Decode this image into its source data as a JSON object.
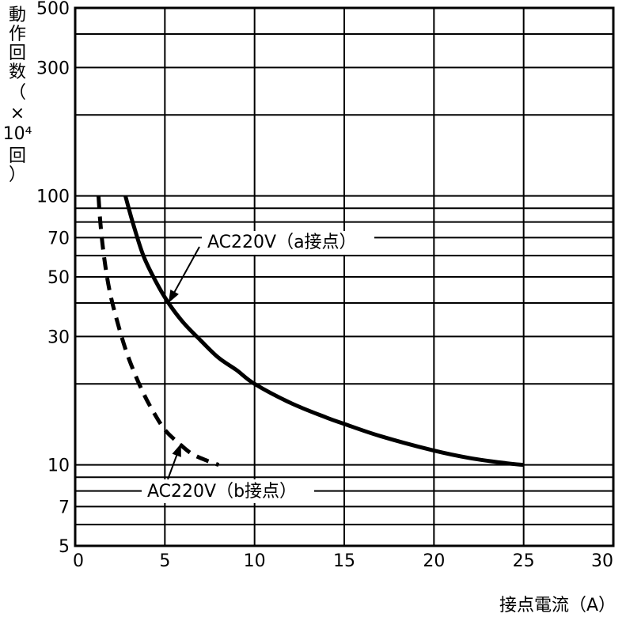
{
  "chart_data": {
    "type": "line",
    "title": "",
    "xlabel": "接点電流（A）",
    "ylabel": [
      "動",
      "作",
      "回",
      "数",
      "（",
      "×",
      "10⁴",
      "回",
      "）"
    ],
    "x_scale": "linear",
    "y_scale": "log",
    "xlim": [
      0,
      30
    ],
    "ylim": [
      5,
      500
    ],
    "x_ticks": [
      0,
      5,
      10,
      15,
      20,
      25,
      30
    ],
    "x_tick_labels": [
      "0",
      "5",
      "10",
      "15",
      "20",
      "25",
      "30"
    ],
    "y_ticks": [
      5,
      7,
      10,
      30,
      50,
      70,
      100,
      300,
      500
    ],
    "y_tick_labels": [
      "5",
      "7",
      "10",
      "30",
      "50",
      "70",
      "100",
      "300",
      "500"
    ],
    "y_gridlines": [
      6,
      7,
      8,
      9,
      10,
      20,
      30,
      40,
      50,
      60,
      70,
      80,
      90,
      100,
      200,
      300,
      400
    ],
    "x_gridlines": [
      5,
      10,
      15,
      20,
      25
    ],
    "grid": true,
    "series": [
      {
        "name": "AC220V（a接点）",
        "style": "solid",
        "color": "#000000",
        "points": [
          [
            2.8,
            100
          ],
          [
            3.2,
            80
          ],
          [
            3.8,
            60
          ],
          [
            4.5,
            48
          ],
          [
            5.2,
            40
          ],
          [
            6,
            34
          ],
          [
            7,
            29
          ],
          [
            8,
            25
          ],
          [
            9,
            22.5
          ],
          [
            10,
            20
          ],
          [
            12,
            17
          ],
          [
            14,
            15
          ],
          [
            15,
            14.2
          ],
          [
            17,
            12.8
          ],
          [
            20,
            11.3
          ],
          [
            22,
            10.6
          ],
          [
            24,
            10.15
          ],
          [
            25,
            10
          ]
        ]
      },
      {
        "name": "AC220V（b接点）",
        "style": "dashed",
        "color": "#000000",
        "points": [
          [
            1.3,
            100
          ],
          [
            1.4,
            80
          ],
          [
            1.6,
            60
          ],
          [
            1.9,
            45
          ],
          [
            2.3,
            35
          ],
          [
            2.8,
            27
          ],
          [
            3.3,
            22
          ],
          [
            3.8,
            18.5
          ],
          [
            4.3,
            16
          ],
          [
            5,
            13.5
          ],
          [
            5.8,
            12
          ],
          [
            6.5,
            11
          ],
          [
            7.3,
            10.4
          ],
          [
            8,
            10
          ]
        ]
      }
    ],
    "annotations": [
      {
        "text": "AC220V（a接点）",
        "target_series": 0,
        "target": [
          5.2,
          40
        ]
      },
      {
        "text": "AC220V（b接点）",
        "target_series": 1,
        "target": [
          5.9,
          12
        ]
      }
    ]
  }
}
